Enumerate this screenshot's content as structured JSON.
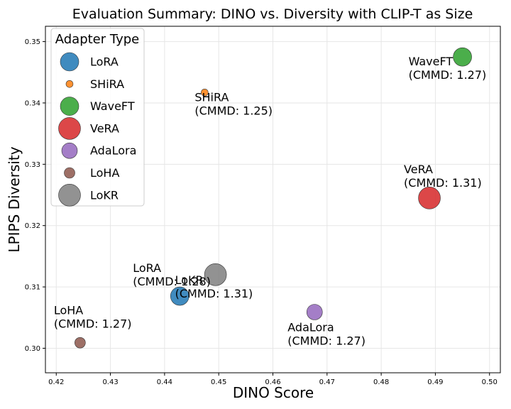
{
  "chart_data": {
    "type": "scatter",
    "title": "Evaluation Summary: DINO vs. Diversity with CLIP-T as Size",
    "xlabel": "DINO Score",
    "ylabel": "LPIPS Diversity",
    "xlim": [
      0.418,
      0.502
    ],
    "ylim": [
      0.296,
      0.3525
    ],
    "xticks": [
      "0.42",
      "0.43",
      "0.44",
      "0.45",
      "0.46",
      "0.47",
      "0.48",
      "0.49",
      "0.50"
    ],
    "yticks": [
      "0.30",
      "0.31",
      "0.32",
      "0.33",
      "0.34",
      "0.35"
    ],
    "grid": true,
    "legend": {
      "title": "Adapter Type",
      "placement": "top-left"
    },
    "points": [
      {
        "name": "LoRA",
        "x": 0.4428,
        "y": 0.3085,
        "size_rank": 4,
        "color": "#1f77b4",
        "label_line1": "LoRA",
        "label_line2": "(CMMD: 1.28)"
      },
      {
        "name": "SHiRA",
        "x": 0.4474,
        "y": 0.3417,
        "size_rank": 1,
        "color": "#ff7f0e",
        "label_line1": "SHiRA",
        "label_line2": "(CMMD: 1.25)"
      },
      {
        "name": "WaveFT",
        "x": 0.495,
        "y": 0.3475,
        "size_rank": 4,
        "color": "#2ca02c",
        "label_line1": "WaveFT",
        "label_line2": "(CMMD: 1.27)"
      },
      {
        "name": "VeRA",
        "x": 0.4889,
        "y": 0.3245,
        "size_rank": 5,
        "color": "#d62728",
        "label_line1": "VeRA",
        "label_line2": "(CMMD: 1.31)"
      },
      {
        "name": "AdaLora",
        "x": 0.4677,
        "y": 0.3059,
        "size_rank": 3,
        "color": "#9467bd",
        "label_line1": "AdaLora",
        "label_line2": "(CMMD: 1.27)"
      },
      {
        "name": "LoHA",
        "x": 0.4244,
        "y": 0.3009,
        "size_rank": 2,
        "color": "#8c564b",
        "label_line1": "LoHA",
        "label_line2": "(CMMD: 1.27)"
      },
      {
        "name": "LoKR",
        "x": 0.4494,
        "y": 0.312,
        "size_rank": 5,
        "color": "#7f7f7f",
        "label_line1": "LoKR",
        "label_line2": "(CMMD: 1.31)"
      }
    ]
  }
}
